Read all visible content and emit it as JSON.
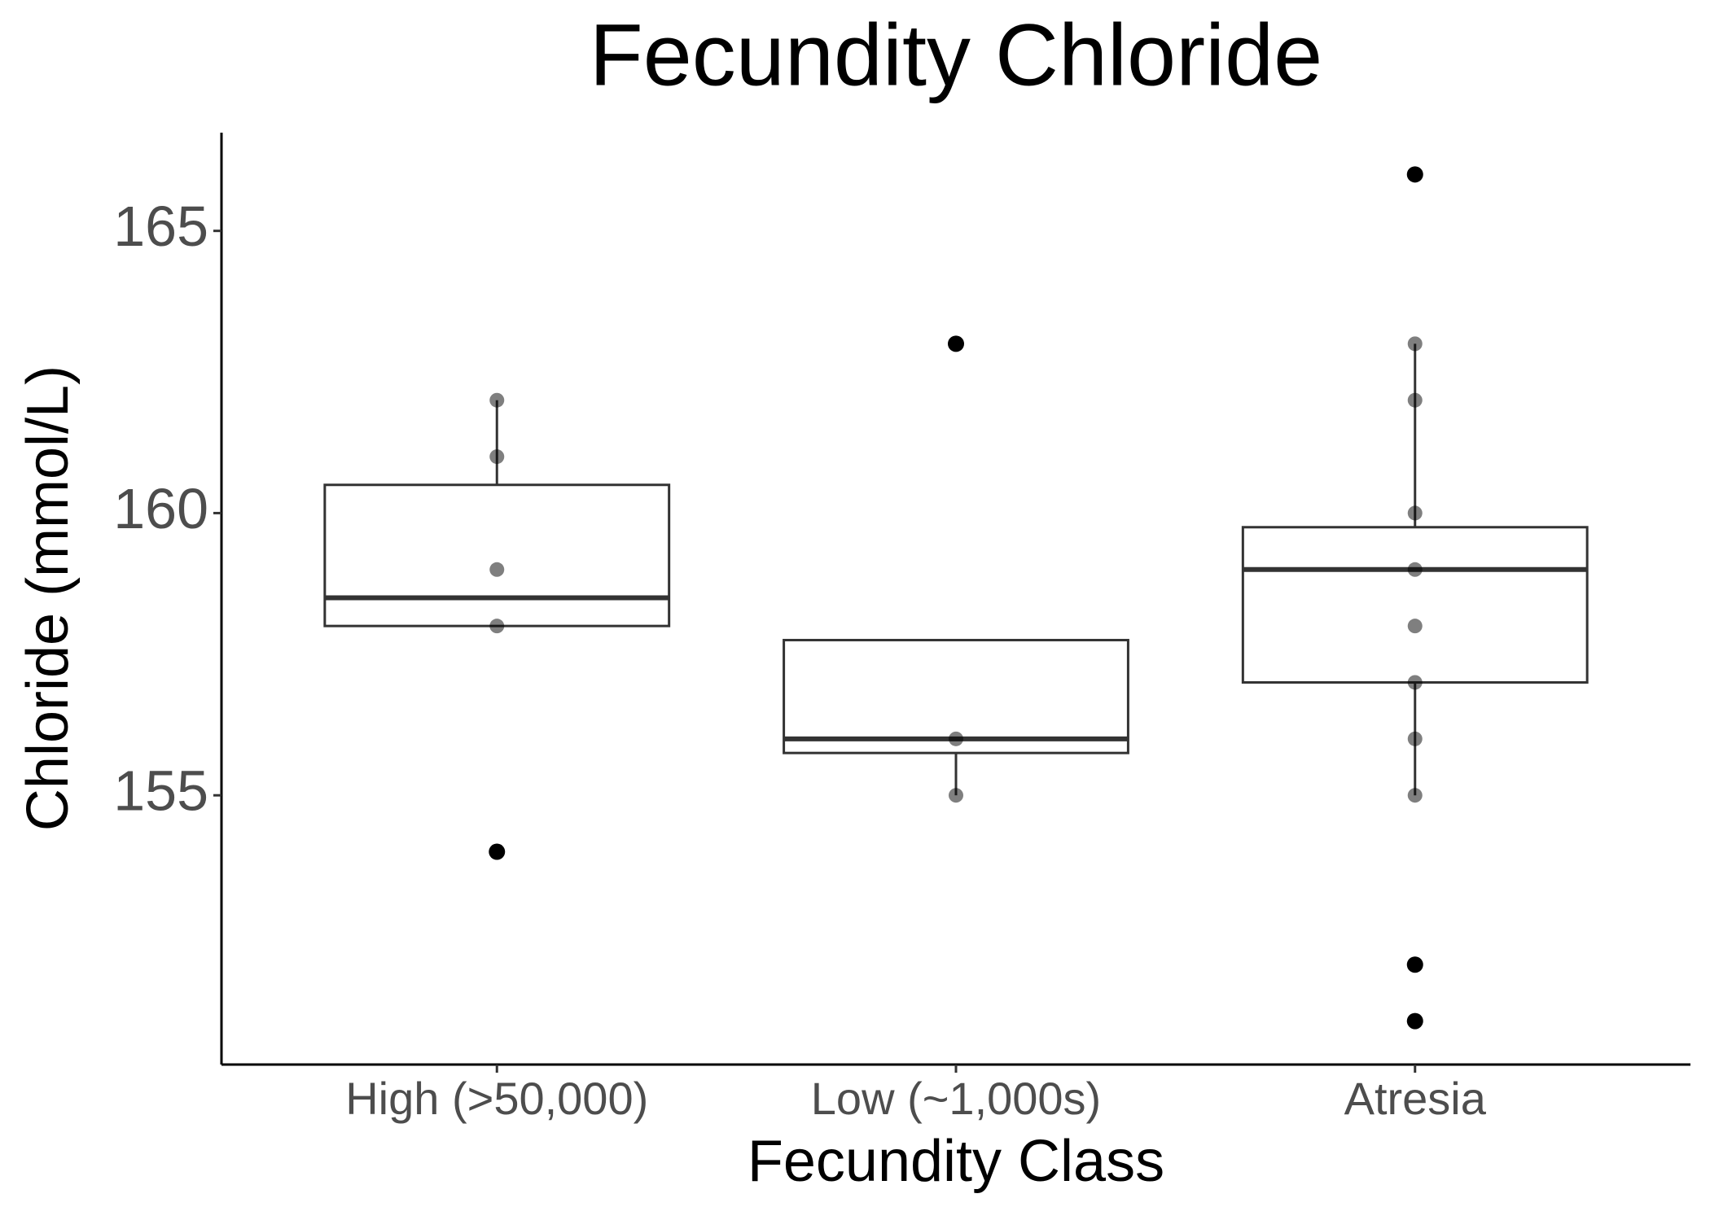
{
  "chart_data": {
    "type": "box",
    "title": "Fecundity Chloride",
    "x_label": "Fecundity Class",
    "y_label": "Chloride (mmol/L)",
    "categories": [
      "High (>50,000)",
      "Low (~1,000s)",
      "Atresia"
    ],
    "boxes": [
      {
        "whislo": 158,
        "q1": 158,
        "med": 158.5,
        "q3": 160.5,
        "whishi": 162
      },
      {
        "whislo": 155,
        "q1": 155.75,
        "med": 156,
        "q3": 157.75,
        "whishi": 157.75
      },
      {
        "whislo": 155,
        "q1": 157,
        "med": 159,
        "q3": 159.75,
        "whishi": 163
      }
    ],
    "outliers": [
      [
        154
      ],
      [
        163
      ],
      [
        166,
        152,
        151
      ]
    ],
    "points": [
      [
        162,
        161,
        159,
        158,
        154
      ],
      [
        163,
        156,
        155
      ],
      [
        166,
        163,
        162,
        160,
        159,
        158,
        157,
        156,
        155,
        152,
        151
      ]
    ],
    "ylim": [
      150.23,
      166.74
    ],
    "yticks": [
      155,
      160,
      165
    ],
    "box_color": "#333333",
    "point_color": "#000000"
  }
}
